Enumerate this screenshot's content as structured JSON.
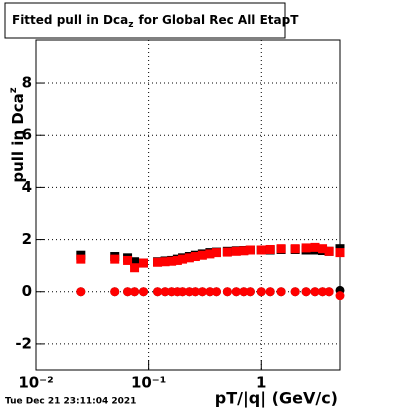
{
  "chart_data": {
    "type": "scatter",
    "title": [
      "Fitted pull in Dca",
      "z",
      "for Global Rec All EtapT"
    ],
    "y_label": [
      "pull in Dca",
      "z"
    ],
    "x_label": "pT/|q| (GeV/c)",
    "timestamp": "Tue Dec 21 23:11:04 2021",
    "x": [
      0.025,
      0.05,
      0.065,
      0.075,
      0.09,
      0.12,
      0.14,
      0.16,
      0.18,
      0.2,
      0.23,
      0.26,
      0.3,
      0.35,
      0.4,
      0.5,
      0.6,
      0.7,
      0.8,
      1.0,
      1.2,
      1.5,
      2.0,
      2.5,
      3.0,
      3.5,
      4.0,
      5.0
    ],
    "series": [
      {
        "color": "#000000",
        "marker": "square",
        "values": [
          1.4,
          1.35,
          1.3,
          1.15,
          1.1,
          1.15,
          1.18,
          1.2,
          1.25,
          1.3,
          1.35,
          1.4,
          1.45,
          1.5,
          1.52,
          1.55,
          1.57,
          1.58,
          1.6,
          1.6,
          1.6,
          1.62,
          1.62,
          1.6,
          1.6,
          1.58,
          1.55,
          1.65
        ]
      },
      {
        "color": "#ff0000",
        "marker": "square",
        "values": [
          1.25,
          1.25,
          1.2,
          0.92,
          1.1,
          1.13,
          1.15,
          1.17,
          1.2,
          1.25,
          1.3,
          1.35,
          1.4,
          1.45,
          1.5,
          1.52,
          1.55,
          1.57,
          1.6,
          1.6,
          1.62,
          1.65,
          1.65,
          1.68,
          1.7,
          1.65,
          1.55,
          1.5
        ]
      },
      {
        "color": "#000000",
        "marker": "circle",
        "values": [
          0,
          0,
          0,
          0,
          0,
          0,
          0,
          0,
          0,
          0,
          0,
          0,
          0,
          0,
          0,
          0,
          0,
          0,
          0,
          0,
          0,
          0,
          0,
          0,
          0,
          0,
          0,
          0.05
        ]
      },
      {
        "color": "#ff0000",
        "marker": "circle",
        "values": [
          0,
          0,
          0,
          0,
          0,
          0,
          0,
          0,
          0,
          0,
          0,
          0,
          0,
          0,
          0,
          0,
          0,
          0,
          0,
          0,
          0,
          0,
          0,
          0,
          0,
          0,
          0,
          -0.15
        ]
      }
    ],
    "xlim": [
      0.01,
      5
    ],
    "x_log": true,
    "xticks": [
      {
        "value": 0.01,
        "label": "10⁻²"
      },
      {
        "value": 0.1,
        "label": "10⁻¹"
      },
      1
    ],
    "ylim": [
      -3,
      9.65
    ],
    "yticks": [
      -2,
      0,
      2,
      4,
      6,
      8
    ],
    "grid": true
  }
}
